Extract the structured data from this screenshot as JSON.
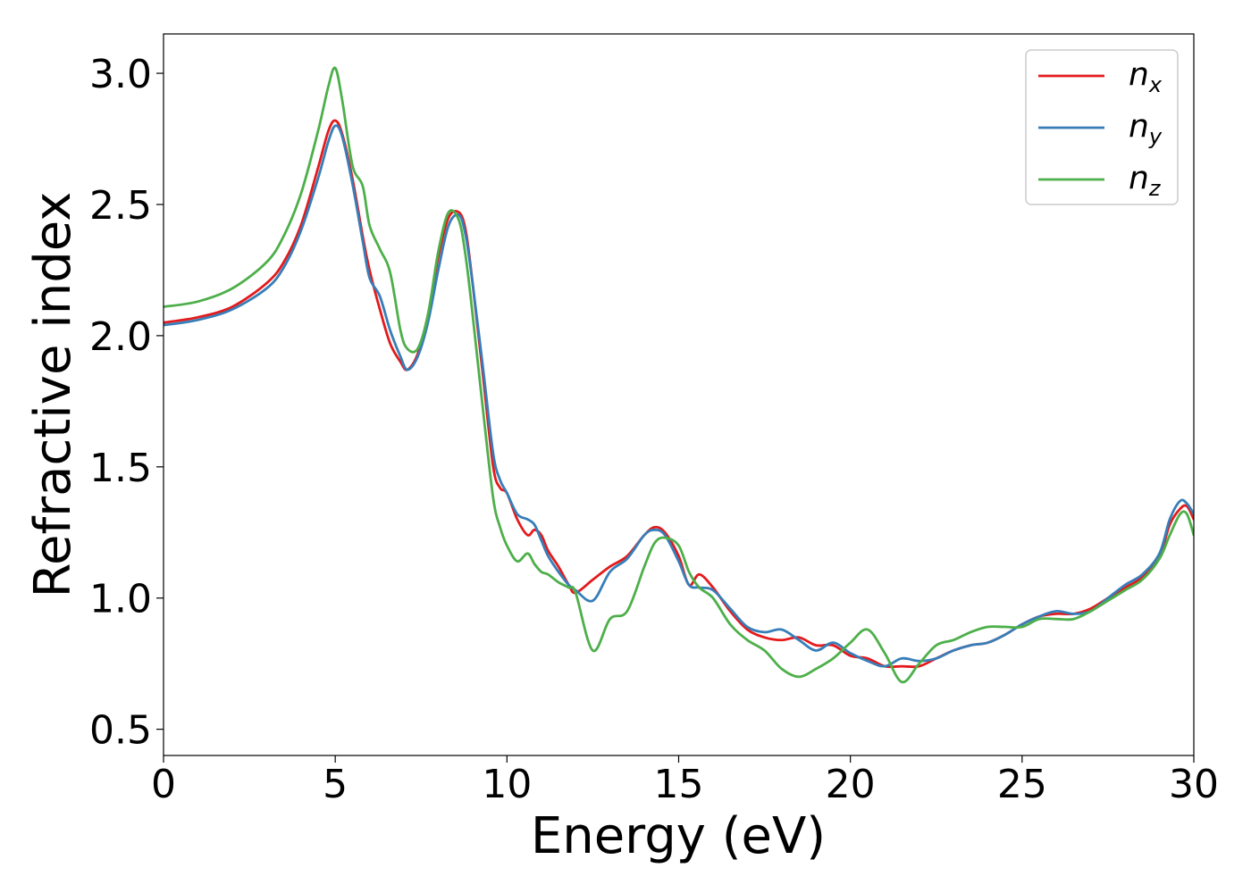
{
  "chart_data": {
    "type": "line",
    "xlabel": "Energy (eV)",
    "ylabel": "Refractive index",
    "xlim": [
      0,
      30
    ],
    "ylim": [
      0.4,
      3.15
    ],
    "xticks": [
      0,
      5,
      10,
      15,
      20,
      25,
      30
    ],
    "xtick_labels": [
      "0",
      "5",
      "10",
      "15",
      "20",
      "25",
      "30"
    ],
    "yticks": [
      0.5,
      1.0,
      1.5,
      2.0,
      2.5,
      3.0
    ],
    "ytick_labels": [
      "0.5",
      "1.0",
      "1.5",
      "2.0",
      "2.5",
      "3.0"
    ],
    "grid": false,
    "legend_position": "top-right",
    "series": [
      {
        "name": "n",
        "subscript": "x",
        "color": "#e41a1c",
        "x": [
          0,
          1,
          2,
          3,
          3.5,
          4,
          4.5,
          4.8,
          5.0,
          5.2,
          5.5,
          5.8,
          6.0,
          6.3,
          6.6,
          6.9,
          7.1,
          7.4,
          7.7,
          8.0,
          8.3,
          8.6,
          8.8,
          9.0,
          9.3,
          9.6,
          9.8,
          10.0,
          10.3,
          10.6,
          10.8,
          11.0,
          11.2,
          11.5,
          11.8,
          12.0,
          12.5,
          13.0,
          13.5,
          14.0,
          14.3,
          14.6,
          15.0,
          15.3,
          15.6,
          16.0,
          16.5,
          17.0,
          17.5,
          18.0,
          18.5,
          19.0,
          19.5,
          20.0,
          20.5,
          21.0,
          21.5,
          22.0,
          22.5,
          23.0,
          23.5,
          24.0,
          24.5,
          25.0,
          25.5,
          26.0,
          26.5,
          27.0,
          27.5,
          28.0,
          28.5,
          29.0,
          29.3,
          29.6,
          29.8,
          30.0
        ],
        "y": [
          2.05,
          2.07,
          2.11,
          2.2,
          2.28,
          2.42,
          2.64,
          2.78,
          2.82,
          2.77,
          2.6,
          2.38,
          2.25,
          2.1,
          1.97,
          1.9,
          1.87,
          1.93,
          2.08,
          2.3,
          2.45,
          2.47,
          2.4,
          2.2,
          1.85,
          1.5,
          1.42,
          1.4,
          1.3,
          1.24,
          1.26,
          1.24,
          1.18,
          1.12,
          1.05,
          1.02,
          1.07,
          1.12,
          1.16,
          1.24,
          1.27,
          1.25,
          1.16,
          1.05,
          1.09,
          1.04,
          0.95,
          0.88,
          0.85,
          0.84,
          0.85,
          0.82,
          0.82,
          0.78,
          0.77,
          0.74,
          0.74,
          0.74,
          0.77,
          0.8,
          0.82,
          0.83,
          0.86,
          0.9,
          0.93,
          0.94,
          0.94,
          0.96,
          1.0,
          1.04,
          1.08,
          1.16,
          1.28,
          1.34,
          1.35,
          1.3
        ]
      },
      {
        "name": "n",
        "subscript": "y",
        "color": "#377eb8",
        "x": [
          0,
          1,
          2,
          3,
          3.5,
          4,
          4.5,
          4.8,
          5.0,
          5.2,
          5.5,
          5.8,
          6.0,
          6.3,
          6.6,
          6.9,
          7.1,
          7.4,
          7.7,
          8.0,
          8.3,
          8.6,
          8.8,
          9.0,
          9.3,
          9.6,
          9.8,
          10.0,
          10.3,
          10.6,
          10.8,
          11.0,
          11.2,
          11.5,
          11.8,
          12.0,
          12.5,
          13.0,
          13.5,
          14.0,
          14.3,
          14.6,
          15.0,
          15.3,
          15.6,
          16.0,
          16.5,
          17.0,
          17.5,
          18.0,
          18.5,
          19.0,
          19.5,
          20.0,
          20.5,
          21.0,
          21.5,
          22.0,
          22.5,
          23.0,
          23.5,
          24.0,
          24.5,
          25.0,
          25.5,
          26.0,
          26.5,
          27.0,
          27.5,
          28.0,
          28.5,
          29.0,
          29.3,
          29.6,
          29.8,
          30.0
        ],
        "y": [
          2.04,
          2.06,
          2.1,
          2.18,
          2.26,
          2.4,
          2.6,
          2.74,
          2.8,
          2.76,
          2.58,
          2.36,
          2.22,
          2.15,
          2.02,
          1.92,
          1.87,
          1.92,
          2.05,
          2.25,
          2.42,
          2.46,
          2.38,
          2.2,
          1.88,
          1.55,
          1.45,
          1.4,
          1.32,
          1.3,
          1.28,
          1.22,
          1.16,
          1.1,
          1.05,
          1.03,
          0.99,
          1.1,
          1.15,
          1.24,
          1.26,
          1.24,
          1.14,
          1.05,
          1.04,
          1.03,
          0.96,
          0.89,
          0.87,
          0.88,
          0.84,
          0.8,
          0.83,
          0.79,
          0.76,
          0.74,
          0.77,
          0.76,
          0.77,
          0.8,
          0.82,
          0.83,
          0.86,
          0.9,
          0.93,
          0.95,
          0.94,
          0.95,
          1.0,
          1.05,
          1.09,
          1.17,
          1.3,
          1.37,
          1.36,
          1.32
        ]
      },
      {
        "name": "n",
        "subscript": "z",
        "color": "#4daf4a",
        "x": [
          0,
          1,
          2,
          3,
          3.5,
          4,
          4.5,
          4.8,
          5.0,
          5.2,
          5.5,
          5.8,
          6.0,
          6.3,
          6.6,
          6.9,
          7.1,
          7.4,
          7.7,
          8.0,
          8.3,
          8.6,
          8.8,
          9.0,
          9.3,
          9.6,
          9.8,
          10.0,
          10.3,
          10.6,
          10.8,
          11.0,
          11.2,
          11.5,
          11.8,
          12.0,
          12.5,
          13.0,
          13.5,
          14.0,
          14.3,
          14.6,
          15.0,
          15.3,
          15.6,
          16.0,
          16.5,
          17.0,
          17.5,
          18.0,
          18.5,
          19.0,
          19.5,
          20.0,
          20.5,
          21.0,
          21.5,
          22.0,
          22.5,
          23.0,
          23.5,
          24.0,
          24.5,
          25.0,
          25.5,
          26.0,
          26.5,
          27.0,
          27.5,
          28.0,
          28.5,
          29.0,
          29.3,
          29.6,
          29.8,
          30.0
        ],
        "y": [
          2.11,
          2.13,
          2.18,
          2.28,
          2.38,
          2.54,
          2.78,
          2.95,
          3.02,
          2.9,
          2.65,
          2.57,
          2.42,
          2.33,
          2.24,
          2.02,
          1.95,
          1.95,
          2.08,
          2.32,
          2.47,
          2.44,
          2.3,
          2.08,
          1.72,
          1.38,
          1.27,
          1.2,
          1.14,
          1.17,
          1.13,
          1.1,
          1.09,
          1.06,
          1.04,
          1.02,
          0.8,
          0.92,
          0.95,
          1.12,
          1.21,
          1.23,
          1.2,
          1.1,
          1.04,
          1.0,
          0.9,
          0.84,
          0.8,
          0.73,
          0.7,
          0.73,
          0.77,
          0.83,
          0.88,
          0.79,
          0.68,
          0.75,
          0.82,
          0.84,
          0.87,
          0.89,
          0.89,
          0.89,
          0.92,
          0.92,
          0.92,
          0.95,
          0.99,
          1.03,
          1.07,
          1.15,
          1.24,
          1.32,
          1.32,
          1.24
        ]
      }
    ]
  }
}
